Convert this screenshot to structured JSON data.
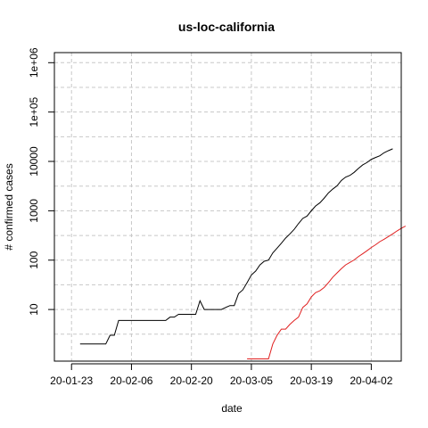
{
  "chart_data": {
    "type": "line",
    "title": "us-loc-california",
    "xlabel": "date",
    "ylabel": "# confirmed cases",
    "y_scale": "log10",
    "ylim": [
      0.9,
      1600000
    ],
    "x_range_days": [
      "20-01-19",
      "20-04-09"
    ],
    "x_ticks": [
      "20-01-23",
      "20-02-06",
      "20-02-20",
      "20-03-05",
      "20-03-19",
      "20-04-02"
    ],
    "y_ticks": [
      {
        "value": 10,
        "label": "10"
      },
      {
        "value": 100,
        "label": "100"
      },
      {
        "value": 1000,
        "label": "1000"
      },
      {
        "value": 10000,
        "label": "10000"
      },
      {
        "value": 100000,
        "label": "1e+05"
      },
      {
        "value": 1000000,
        "label": "1e+06"
      }
    ],
    "grid": true,
    "series": [
      {
        "color": "#000000",
        "points": [
          [
            "20-01-25",
            2
          ],
          [
            "20-01-31",
            2
          ],
          [
            "20-02-01",
            3
          ],
          [
            "20-02-02",
            3
          ],
          [
            "20-02-03",
            6
          ],
          [
            "20-02-14",
            6
          ],
          [
            "20-02-15",
            7
          ],
          [
            "20-02-16",
            7
          ],
          [
            "20-02-17",
            8
          ],
          [
            "20-02-21",
            8
          ],
          [
            "20-02-22",
            15
          ],
          [
            "20-02-23",
            10
          ],
          [
            "20-02-27",
            10
          ],
          [
            "20-02-28",
            11
          ],
          [
            "20-02-29",
            12
          ],
          [
            "20-03-01",
            12
          ],
          [
            "20-03-02",
            21
          ],
          [
            "20-03-03",
            25
          ],
          [
            "20-03-04",
            35
          ],
          [
            "20-03-05",
            50
          ],
          [
            "20-03-06",
            60
          ],
          [
            "20-03-07",
            80
          ],
          [
            "20-03-08",
            95
          ],
          [
            "20-03-09",
            100
          ],
          [
            "20-03-10",
            140
          ],
          [
            "20-03-11",
            175
          ],
          [
            "20-03-12",
            220
          ],
          [
            "20-03-13",
            280
          ],
          [
            "20-03-14",
            340
          ],
          [
            "20-03-15",
            420
          ],
          [
            "20-03-16",
            550
          ],
          [
            "20-03-17",
            700
          ],
          [
            "20-03-18",
            780
          ],
          [
            "20-03-19",
            1000
          ],
          [
            "20-03-20",
            1250
          ],
          [
            "20-03-21",
            1450
          ],
          [
            "20-03-22",
            1800
          ],
          [
            "20-03-23",
            2300
          ],
          [
            "20-03-24",
            2750
          ],
          [
            "20-03-25",
            3200
          ],
          [
            "20-03-26",
            4100
          ],
          [
            "20-03-27",
            4800
          ],
          [
            "20-03-28",
            5200
          ],
          [
            "20-03-29",
            6000
          ],
          [
            "20-03-30",
            7200
          ],
          [
            "20-03-31",
            8500
          ],
          [
            "20-04-01",
            9500
          ],
          [
            "20-04-02",
            11000
          ],
          [
            "20-04-03",
            12000
          ],
          [
            "20-04-04",
            13000
          ],
          [
            "20-04-05",
            15000
          ],
          [
            "20-04-06",
            16500
          ],
          [
            "20-04-07",
            18000
          ]
        ]
      },
      {
        "color": "#e02020",
        "points": [
          [
            "20-03-04",
            1
          ],
          [
            "20-03-09",
            1
          ],
          [
            "20-03-10",
            2
          ],
          [
            "20-03-11",
            3
          ],
          [
            "20-03-12",
            4
          ],
          [
            "20-03-13",
            4
          ],
          [
            "20-03-14",
            5
          ],
          [
            "20-03-15",
            6
          ],
          [
            "20-03-16",
            7
          ],
          [
            "20-03-17",
            11
          ],
          [
            "20-03-18",
            13
          ],
          [
            "20-03-19",
            18
          ],
          [
            "20-03-20",
            22
          ],
          [
            "20-03-21",
            24
          ],
          [
            "20-03-22",
            28
          ],
          [
            "20-03-23",
            35
          ],
          [
            "20-03-24",
            45
          ],
          [
            "20-03-25",
            55
          ],
          [
            "20-03-26",
            67
          ],
          [
            "20-03-27",
            80
          ],
          [
            "20-03-28",
            90
          ],
          [
            "20-03-29",
            101
          ],
          [
            "20-03-30",
            118
          ],
          [
            "20-03-31",
            135
          ],
          [
            "20-04-01",
            155
          ],
          [
            "20-04-02",
            180
          ],
          [
            "20-04-03",
            205
          ],
          [
            "20-04-04",
            237
          ],
          [
            "20-04-05",
            265
          ],
          [
            "20-04-06",
            300
          ],
          [
            "20-04-07",
            340
          ],
          [
            "20-04-08",
            390
          ],
          [
            "20-04-09",
            440
          ],
          [
            "20-04-10",
            490
          ]
        ]
      }
    ]
  }
}
